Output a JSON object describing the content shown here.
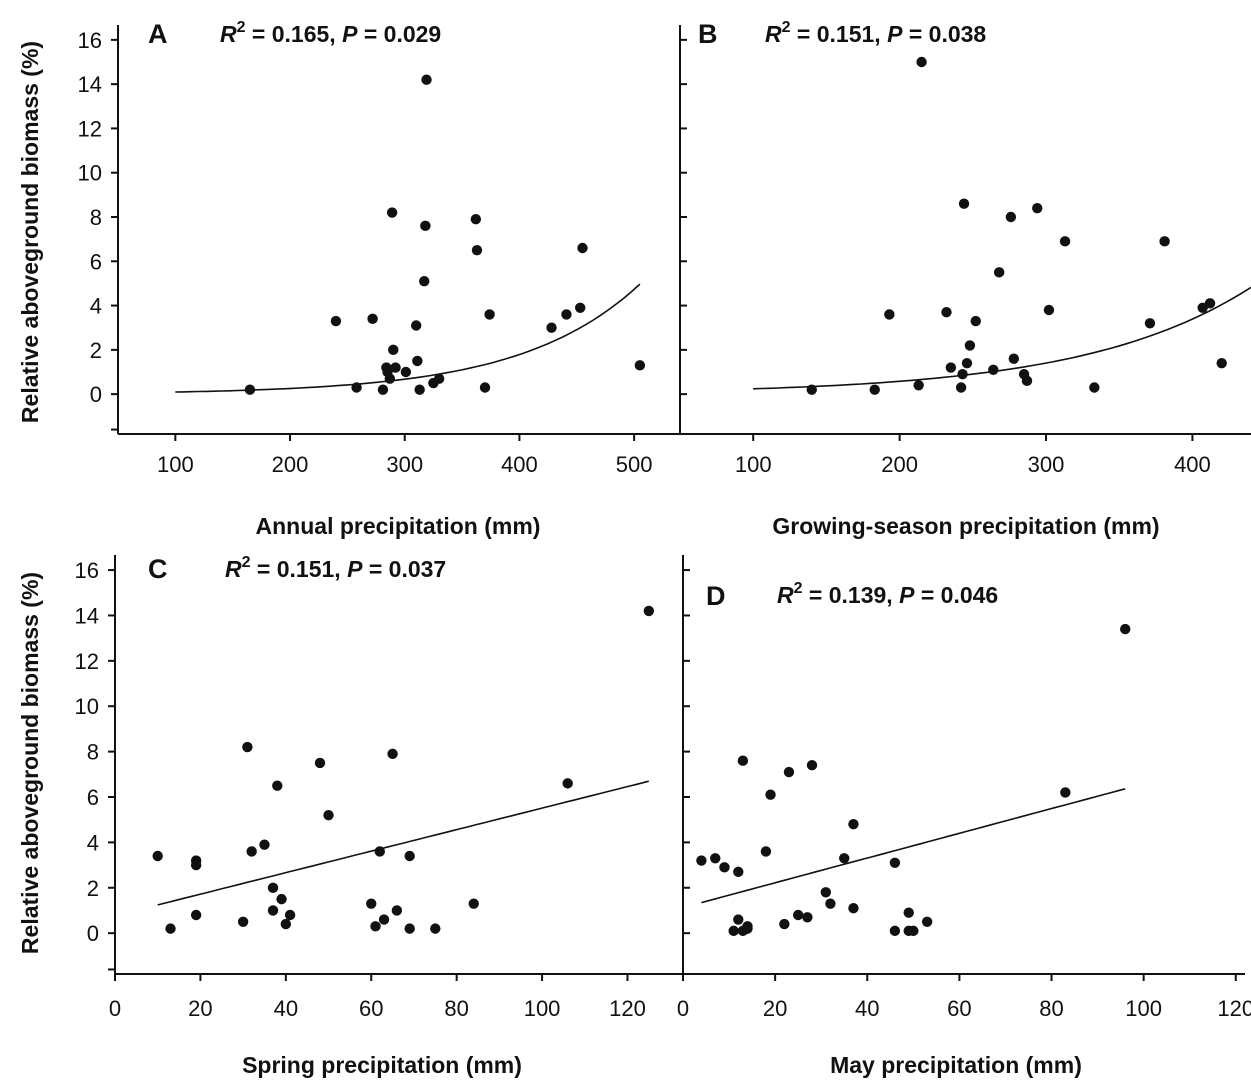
{
  "figure": {
    "ylabel": "Relative aboveground biomass (%)"
  },
  "chart_data": [
    {
      "id": "A",
      "type": "scatter",
      "panel_label": "A",
      "stats": {
        "r2_label": "R",
        "r2_sup": "2",
        "r2_value": " = 0.165, ",
        "p_label": "P",
        "p_value": " = 0.029"
      },
      "xlabel": "Annual precipitation (mm)",
      "ylabel": "Relative aboveground biomass (%)",
      "xlim": [
        50,
        540
      ],
      "ylim": [
        -1.8,
        16.4
      ],
      "xticks": [
        100,
        200,
        300,
        400,
        500
      ],
      "yticks": [
        0,
        2,
        4,
        6,
        8,
        10,
        12,
        14,
        16
      ],
      "fit": {
        "form": "exponential",
        "a": 0.0365,
        "b": 0.00973,
        "x_range": [
          100,
          505
        ]
      },
      "x": [
        165,
        240,
        258,
        272,
        281,
        284,
        285,
        287,
        289,
        290,
        292,
        301,
        310,
        311,
        313,
        317,
        318,
        319,
        325,
        330,
        362,
        363,
        370,
        374,
        428,
        441,
        453,
        455,
        505
      ],
      "y": [
        0.2,
        3.3,
        0.3,
        3.4,
        0.2,
        1.2,
        1.0,
        0.7,
        8.2,
        2.0,
        1.2,
        1.0,
        3.1,
        1.5,
        0.2,
        5.1,
        7.6,
        14.2,
        0.5,
        0.7,
        7.9,
        6.5,
        0.3,
        3.6,
        3.0,
        3.6,
        3.9,
        6.6,
        1.3
      ]
    },
    {
      "id": "B",
      "type": "scatter",
      "panel_label": "B",
      "stats": {
        "r2_label": "R",
        "r2_sup": "2",
        "r2_value": " = 0.151, ",
        "p_label": "P",
        "p_value": " = 0.038"
      },
      "xlabel": "Growing-season precipitation (mm)",
      "ylabel": "",
      "xlim": [
        50,
        440
      ],
      "ylim": [
        -1.8,
        16.4
      ],
      "xticks": [
        100,
        200,
        300,
        400
      ],
      "yticks": [
        0,
        2,
        4,
        6,
        8,
        10,
        12,
        14,
        16
      ],
      "fit": {
        "form": "exponential",
        "a": 0.0995,
        "b": 0.00882,
        "x_range": [
          100,
          440
        ]
      },
      "x": [
        140,
        183,
        193,
        213,
        215,
        232,
        235,
        242,
        243,
        244,
        246,
        248,
        252,
        264,
        268,
        276,
        278,
        285,
        287,
        294,
        302,
        313,
        333,
        371,
        381,
        407,
        412,
        420
      ],
      "y": [
        0.2,
        0.2,
        3.6,
        0.4,
        15.0,
        3.7,
        1.2,
        0.3,
        0.9,
        8.6,
        1.4,
        2.2,
        3.3,
        1.1,
        5.5,
        8.0,
        1.6,
        0.9,
        0.6,
        8.4,
        3.8,
        6.9,
        0.3,
        3.2,
        6.9,
        3.9,
        4.1,
        1.4
      ]
    },
    {
      "id": "C",
      "type": "scatter",
      "panel_label": "C",
      "stats": {
        "r2_label": "R",
        "r2_sup": "2",
        "r2_value": " = 0.151, ",
        "p_label": "P",
        "p_value": " = 0.037"
      },
      "xlabel": "Spring precipitation (mm)",
      "ylabel": "Relative aboveground biomass (%)",
      "xlim": [
        0,
        133
      ],
      "ylim": [
        -1.8,
        16.4
      ],
      "xticks": [
        0,
        20,
        40,
        60,
        80,
        100,
        120
      ],
      "yticks": [
        0,
        2,
        4,
        6,
        8,
        10,
        12,
        14,
        16
      ],
      "fit": {
        "form": "linear",
        "slope": 0.0474,
        "intercept": 0.77,
        "x_range": [
          10,
          125
        ]
      },
      "x": [
        10,
        13,
        19,
        19,
        19,
        30,
        31,
        32,
        35,
        37,
        37,
        38,
        39,
        40,
        41,
        48,
        50,
        60,
        61,
        62,
        63,
        65,
        66,
        69,
        69,
        75,
        84,
        106,
        125
      ],
      "y": [
        3.4,
        0.2,
        3.2,
        3.0,
        0.8,
        0.5,
        8.2,
        3.6,
        3.9,
        2.0,
        1.0,
        6.5,
        1.5,
        0.4,
        0.8,
        7.5,
        5.2,
        1.3,
        0.3,
        3.6,
        0.6,
        7.9,
        1.0,
        3.4,
        0.2,
        0.2,
        1.3,
        6.6,
        14.2
      ]
    },
    {
      "id": "D",
      "type": "scatter",
      "panel_label": "D",
      "stats": {
        "r2_label": "R",
        "r2_sup": "2",
        "r2_value": " = 0.139, ",
        "p_label": "P",
        "p_value": " = 0.046"
      },
      "xlabel": "May precipitation (mm)",
      "ylabel": "",
      "xlim": [
        0,
        122
      ],
      "ylim": [
        -1.8,
        16.4
      ],
      "xticks": [
        0,
        20,
        40,
        60,
        80,
        100,
        120
      ],
      "yticks": [
        0,
        2,
        4,
        6,
        8,
        10,
        12,
        14,
        16
      ],
      "fit": {
        "form": "linear",
        "slope": 0.0545,
        "intercept": 1.13,
        "x_range": [
          4,
          96
        ]
      },
      "x": [
        4,
        7,
        9,
        11,
        12,
        12,
        13,
        13,
        14,
        14,
        18,
        19,
        22,
        23,
        25,
        27,
        28,
        31,
        32,
        35,
        37,
        37,
        46,
        46,
        49,
        49,
        50,
        53,
        83,
        96
      ],
      "y": [
        3.2,
        3.3,
        2.9,
        0.1,
        0.6,
        2.7,
        7.6,
        0.1,
        0.2,
        0.3,
        3.6,
        6.1,
        0.4,
        7.1,
        0.8,
        0.7,
        7.4,
        1.8,
        1.3,
        3.3,
        4.8,
        1.1,
        0.1,
        3.1,
        0.9,
        0.1,
        0.1,
        0.5,
        6.2,
        13.4
      ]
    }
  ]
}
